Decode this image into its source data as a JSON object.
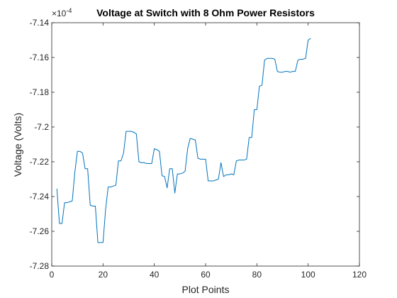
{
  "chart_data": {
    "type": "line",
    "title": "Voltage at Switch with 8 Ohm Power Resistors",
    "xlabel": "Plot Points",
    "ylabel": "Voltage (Volts)",
    "y_exponent_label": "×10",
    "y_exponent_power": "-4",
    "xlim": [
      0,
      120
    ],
    "ylim": [
      -7.28,
      -7.14
    ],
    "x_ticks": [
      0,
      20,
      40,
      60,
      80,
      100,
      120
    ],
    "y_ticks": [
      -7.28,
      -7.26,
      -7.24,
      -7.22,
      -7.2,
      -7.18,
      -7.16,
      -7.14
    ],
    "x_tick_labels": [
      "0",
      "20",
      "40",
      "60",
      "80",
      "100",
      "120"
    ],
    "y_tick_labels": [
      "-7.28",
      "-7.26",
      "-7.24",
      "-7.22",
      "-7.2",
      "-7.18",
      "-7.16",
      "-7.14"
    ],
    "grid": false,
    "series": [
      {
        "color": "#0072bd",
        "x": [
          2,
          3,
          4,
          5,
          6,
          7,
          8,
          9,
          10,
          11,
          12,
          13,
          14,
          15,
          16,
          17,
          18,
          19,
          20,
          21,
          22,
          23,
          24,
          25,
          26,
          27,
          28,
          29,
          30,
          31,
          32,
          33,
          34,
          35,
          36,
          37,
          38,
          39,
          40,
          41,
          42,
          43,
          44,
          45,
          46,
          47,
          48,
          49,
          50,
          51,
          52,
          53,
          54,
          55,
          56,
          57,
          58,
          59,
          60,
          61,
          62,
          63,
          64,
          65,
          66,
          67,
          68,
          69,
          70,
          71,
          72,
          73,
          74,
          75,
          76,
          77,
          78,
          79,
          80,
          81,
          82,
          83,
          84,
          85,
          86,
          87,
          88,
          89,
          90,
          91,
          92,
          93,
          94,
          95,
          96,
          97,
          98,
          99,
          100,
          101
        ],
        "y": [
          -7.2355,
          -7.2555,
          -7.2555,
          -7.2435,
          -7.2435,
          -7.243,
          -7.2425,
          -7.226,
          -7.214,
          -7.214,
          -7.215,
          -7.224,
          -7.224,
          -7.245,
          -7.2455,
          -7.2455,
          -7.2665,
          -7.2665,
          -7.2665,
          -7.2475,
          -7.2345,
          -7.2345,
          -7.234,
          -7.2335,
          -7.2195,
          -7.2195,
          -7.215,
          -7.2025,
          -7.2025,
          -7.2025,
          -7.203,
          -7.204,
          -7.22,
          -7.2205,
          -7.2205,
          -7.221,
          -7.221,
          -7.221,
          -7.2125,
          -7.213,
          -7.214,
          -7.228,
          -7.2285,
          -7.235,
          -7.224,
          -7.224,
          -7.238,
          -7.227,
          -7.227,
          -7.2265,
          -7.2255,
          -7.2125,
          -7.2065,
          -7.207,
          -7.2075,
          -7.218,
          -7.2185,
          -7.2185,
          -7.2185,
          -7.231,
          -7.231,
          -7.231,
          -7.2305,
          -7.23,
          -7.2205,
          -7.2285,
          -7.2275,
          -7.2275,
          -7.227,
          -7.2275,
          -7.2195,
          -7.219,
          -7.219,
          -7.219,
          -7.2185,
          -7.206,
          -7.206,
          -7.19,
          -7.19,
          -7.1765,
          -7.176,
          -7.1615,
          -7.1605,
          -7.1605,
          -7.1605,
          -7.161,
          -7.168,
          -7.1685,
          -7.1685,
          -7.168,
          -7.168,
          -7.1685,
          -7.168,
          -7.168,
          -7.1615,
          -7.161,
          -7.161,
          -7.1605,
          -7.15,
          -7.149
        ]
      }
    ]
  }
}
